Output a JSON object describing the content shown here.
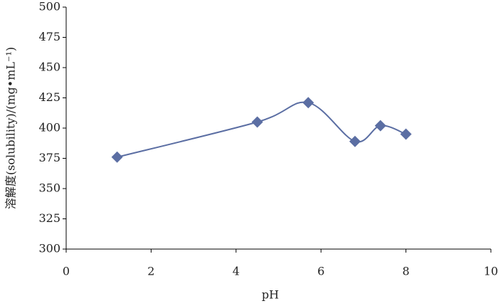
{
  "chart_data": {
    "type": "line",
    "x_label": "pH",
    "y_label": "溶解度(solubility)/(mg•mL⁻¹)",
    "x": [
      1.2,
      4.5,
      5.7,
      6.8,
      7.4,
      8.0
    ],
    "series": [
      {
        "color": "#5b6ea3",
        "values": [
          376,
          405,
          421,
          389,
          402,
          395
        ]
      }
    ],
    "xlim": [
      0,
      10
    ],
    "xticks": [
      0,
      2,
      4,
      6,
      8,
      10
    ],
    "ylim": [
      300,
      500
    ],
    "yticks": [
      300,
      325,
      350,
      375,
      400,
      425,
      450,
      475,
      500
    ],
    "grid": false,
    "smooth": true,
    "marker": "diamond"
  }
}
